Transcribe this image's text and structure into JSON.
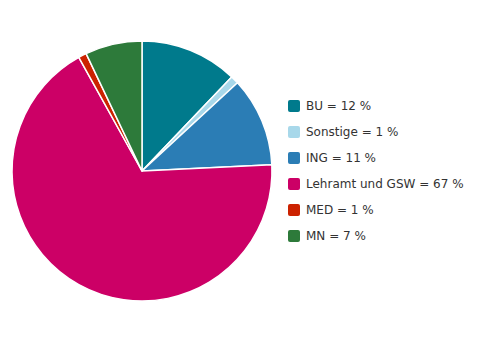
{
  "chart_data": {
    "type": "pie",
    "categories": [
      "BU = 12 %",
      "Sonstige = 1 %",
      "ING = 11 %",
      "Lehramt und GSW = 67 %",
      "MED = 1 %",
      "MN = 7 %"
    ],
    "values": [
      12,
      1,
      11,
      67,
      1,
      7
    ],
    "colors": [
      "#007a8c",
      "#a8d8ea",
      "#2b7db5",
      "#cc0066",
      "#cc2200",
      "#2d7a3a"
    ],
    "legend": "right"
  }
}
